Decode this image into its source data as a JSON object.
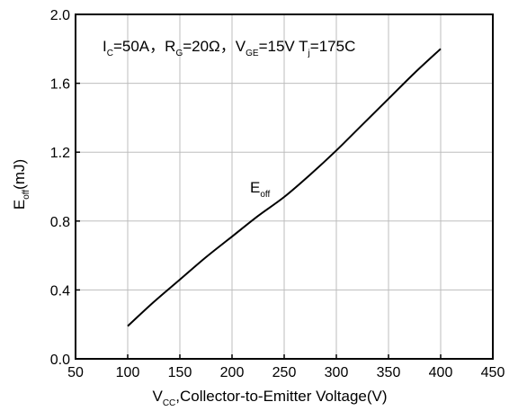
{
  "chart_data": {
    "type": "line",
    "title": "",
    "annotation": {
      "Ic_main": "I",
      "Ic_sub": "C",
      "Ic_val": "=50A，",
      "Rg_main": "R",
      "Rg_sub": "G",
      "Rg_val": "=20Ω，",
      "Vge_main": "V",
      "Vge_sub": "GE",
      "Vge_val": "=15V ",
      "Tj_main": "T",
      "Tj_sub": "j",
      "Tj_val": "=175C"
    },
    "xlabel": {
      "main": "V",
      "sub": "CC",
      "rest": ",Collector-to-Emitter Voltage(V)"
    },
    "ylabel": {
      "main": "E",
      "sub": "off",
      "rest": "(mJ)"
    },
    "xlim": [
      50,
      450
    ],
    "ylim": [
      0.0,
      2.0
    ],
    "xticks": [
      50,
      100,
      150,
      200,
      250,
      300,
      350,
      400,
      450
    ],
    "xtick_labels": [
      "50",
      "100",
      "150",
      "200",
      "250",
      "300",
      "350",
      "400",
      "450"
    ],
    "yticks": [
      0.0,
      0.4,
      0.8,
      1.2,
      1.6,
      2.0
    ],
    "ytick_labels": [
      "0.0",
      "0.4",
      "0.8",
      "1.2",
      "1.6",
      "2.0"
    ],
    "grid": true,
    "series": [
      {
        "name": "Eoff",
        "label_main": "E",
        "label_sub": "off",
        "color": "#000000",
        "x": [
          100,
          125,
          150,
          175,
          200,
          225,
          250,
          275,
          300,
          325,
          350,
          375,
          400
        ],
        "y": [
          0.19,
          0.33,
          0.46,
          0.59,
          0.71,
          0.83,
          0.94,
          1.07,
          1.21,
          1.36,
          1.51,
          1.66,
          1.8
        ]
      }
    ]
  }
}
